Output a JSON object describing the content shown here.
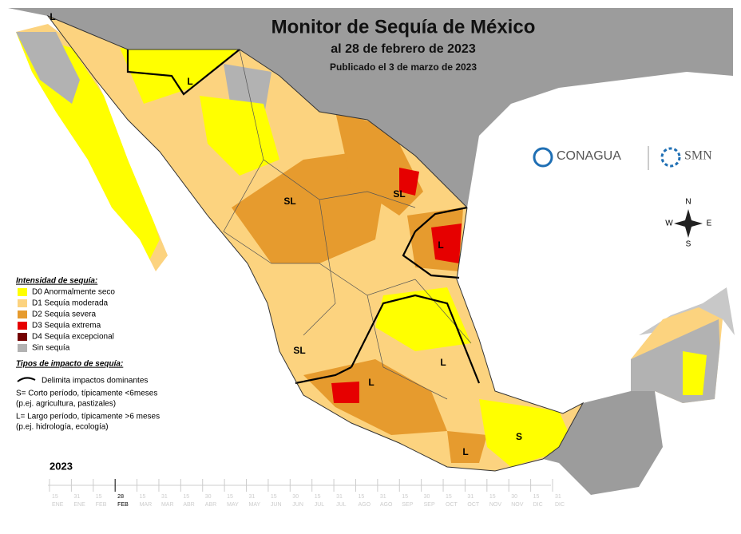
{
  "header": {
    "title": "Monitor de Sequía de México",
    "date": "al 28 de febrero de 2023",
    "published": "Publicado el 3 de marzo de 2023"
  },
  "logos": {
    "conagua": "CONAGUA",
    "smn": "SMN"
  },
  "compass": {
    "n": "N",
    "s": "S",
    "e": "E",
    "w": "W"
  },
  "legend": {
    "title": "Intensidad de sequía:",
    "items": [
      {
        "label": "D0 Anormalmente seco",
        "color": "#ffff00"
      },
      {
        "label": "D1 Sequía moderada",
        "color": "#fcd37f"
      },
      {
        "label": "D2 Sequía severa",
        "color": "#e69b2e"
      },
      {
        "label": "D3 Sequía extrema",
        "color": "#e60000"
      },
      {
        "label": "D4 Sequía excepcional",
        "color": "#730000"
      },
      {
        "label": "Sin sequía",
        "color": "#b2b2b2"
      }
    ]
  },
  "impact": {
    "title": "Tipos de impacto de sequía:",
    "line": "Delimita impactos dominantes",
    "notes": [
      "S= Corto período, típicamente <6meses",
      "(p.ej. agricultura, pastizales)",
      "L= Largo período, típicamente >6 meses",
      "(p.ej. hidrología, ecología)"
    ]
  },
  "map_labels": [
    "L",
    "L",
    "SL",
    "SL",
    "SL",
    "L",
    "L",
    "L",
    "L",
    "S"
  ],
  "timeline": {
    "year": "2023",
    "dates": [
      {
        "day": "15",
        "month": "ENE"
      },
      {
        "day": "31",
        "month": "ENE"
      },
      {
        "day": "15",
        "month": "FEB"
      },
      {
        "day": "28",
        "month": "FEB"
      },
      {
        "day": "15",
        "month": "MAR"
      },
      {
        "day": "31",
        "month": "MAR"
      },
      {
        "day": "15",
        "month": "ABR"
      },
      {
        "day": "30",
        "month": "ABR"
      },
      {
        "day": "15",
        "month": "MAY"
      },
      {
        "day": "31",
        "month": "MAY"
      },
      {
        "day": "15",
        "month": "JUN"
      },
      {
        "day": "30",
        "month": "JUN"
      },
      {
        "day": "15",
        "month": "JUL"
      },
      {
        "day": "31",
        "month": "JUL"
      },
      {
        "day": "15",
        "month": "AGO"
      },
      {
        "day": "31",
        "month": "AGO"
      },
      {
        "day": "15",
        "month": "SEP"
      },
      {
        "day": "30",
        "month": "SEP"
      },
      {
        "day": "15",
        "month": "OCT"
      },
      {
        "day": "31",
        "month": "OCT"
      },
      {
        "day": "15",
        "month": "NOV"
      },
      {
        "day": "30",
        "month": "NOV"
      },
      {
        "day": "15",
        "month": "DIC"
      },
      {
        "day": "31",
        "month": "DIC"
      }
    ],
    "current": 3
  }
}
